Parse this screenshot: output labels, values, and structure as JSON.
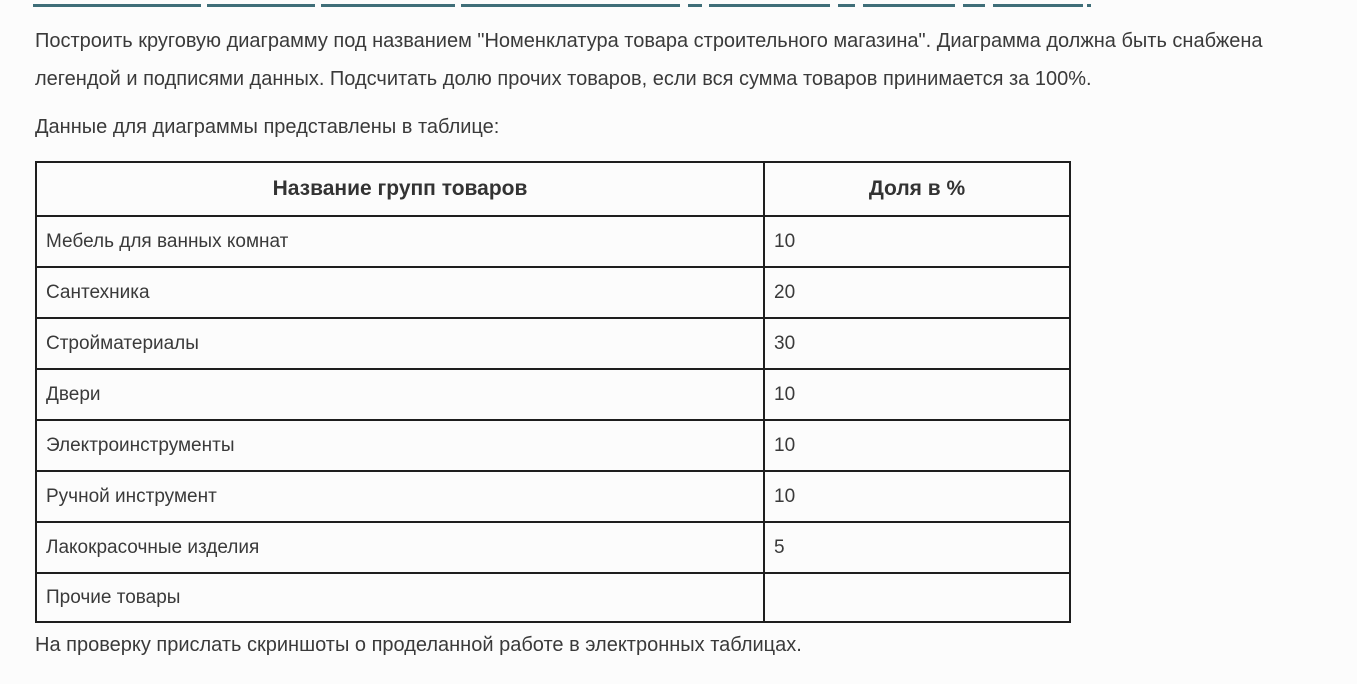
{
  "page": {
    "background": "#fcfcfc",
    "text_color": "#3a3a3a",
    "link_color": "#3f6e78",
    "table_border_color": "#1e1e1e"
  },
  "task": {
    "paragraph": "Построить круговую диаграмму под названием \"Номенклатура товара строительного магазина\". Диаграмма должна быть снабжена легендой и подписями данных. Подсчитать долю прочих товаров, если вся сумма товаров принимается за 100%.",
    "table_intro": "Данные для диаграммы представлены в таблице:"
  },
  "table": {
    "headers": [
      "Название групп товаров",
      "Доля в %"
    ],
    "rows": [
      {
        "name": "Мебель для ванных комнат",
        "share": "10"
      },
      {
        "name": "Сантехника",
        "share": "20"
      },
      {
        "name": "Стройматериалы",
        "share": "30"
      },
      {
        "name": "Двери",
        "share": "10"
      },
      {
        "name": "Электроинструменты",
        "share": "10"
      },
      {
        "name": "Ручной инструмент",
        "share": "10"
      },
      {
        "name": "Лакокрасочные изделия",
        "share": "5"
      },
      {
        "name": "Прочие товары",
        "share": ""
      }
    ]
  },
  "footer": {
    "note": "На проверку прислать скриншоты о проделанной работе в электронных таблицах."
  }
}
